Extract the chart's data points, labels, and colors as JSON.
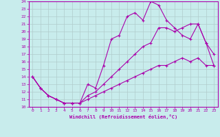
{
  "xlabel": "Windchill (Refroidissement éolien,°C)",
  "bg_color": "#c8ecec",
  "grid_color": "#b0cccc",
  "line_color": "#aa00aa",
  "xlim": [
    -0.5,
    23.5
  ],
  "ylim": [
    10,
    24
  ],
  "xticks": [
    0,
    1,
    2,
    3,
    4,
    5,
    6,
    7,
    8,
    9,
    10,
    11,
    12,
    13,
    14,
    15,
    16,
    17,
    18,
    19,
    20,
    21,
    22,
    23
  ],
  "yticks": [
    10,
    11,
    12,
    13,
    14,
    15,
    16,
    17,
    18,
    19,
    20,
    21,
    22,
    23,
    24
  ],
  "line1_x": [
    0,
    1,
    2,
    3,
    4,
    5,
    6,
    7,
    8,
    9,
    10,
    11,
    12,
    13,
    14,
    15,
    16,
    17,
    18,
    19,
    20,
    21,
    22,
    23
  ],
  "line1_y": [
    14,
    12.5,
    11.5,
    11,
    10.5,
    10.5,
    10.5,
    13.0,
    12.5,
    15.5,
    19.0,
    19.5,
    22.0,
    22.5,
    21.5,
    24.0,
    23.5,
    21.5,
    20.5,
    19.5,
    19.0,
    21.0,
    18.5,
    17.0
  ],
  "line2_x": [
    0,
    1,
    2,
    3,
    4,
    5,
    6,
    7,
    8,
    9,
    10,
    11,
    12,
    13,
    14,
    15,
    16,
    17,
    18,
    19,
    20,
    21,
    22,
    23
  ],
  "line2_y": [
    14,
    12.5,
    11.5,
    11,
    10.5,
    10.5,
    10.5,
    11.5,
    12.0,
    13.0,
    14.0,
    15.0,
    16.0,
    17.0,
    18.0,
    18.5,
    20.5,
    20.5,
    20.0,
    20.5,
    21.0,
    21.0,
    18.5,
    15.5
  ],
  "line3_x": [
    0,
    1,
    2,
    3,
    4,
    5,
    6,
    7,
    8,
    9,
    10,
    11,
    12,
    13,
    14,
    15,
    16,
    17,
    18,
    19,
    20,
    21,
    22,
    23
  ],
  "line3_y": [
    14,
    12.5,
    11.5,
    11,
    10.5,
    10.5,
    10.5,
    11.0,
    11.5,
    12.0,
    12.5,
    13.0,
    13.5,
    14.0,
    14.5,
    15.0,
    15.5,
    15.5,
    16.0,
    16.5,
    16.0,
    16.5,
    15.5,
    15.5
  ]
}
